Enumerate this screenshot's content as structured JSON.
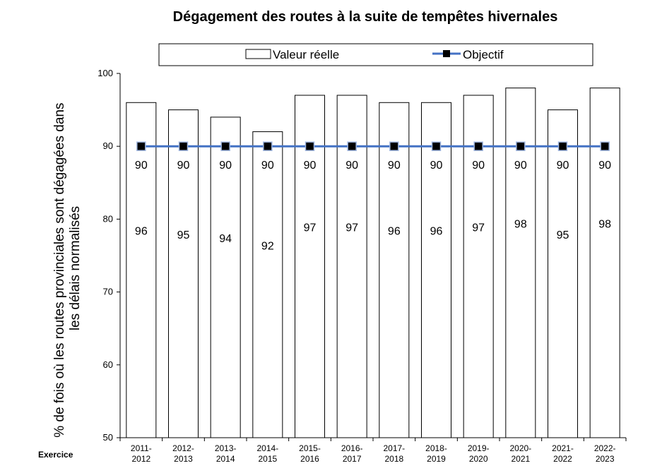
{
  "chart_data": {
    "type": "bar",
    "title": "Dégagement des routes à la suite de tempêtes hivernales",
    "xlabel": "Exercice",
    "ylabel": "% de fois où les routes provinciales sont dégagées dans les délais normalisés",
    "ylim": [
      50,
      100
    ],
    "yticks": [
      "50",
      "60",
      "70",
      "80",
      "90",
      "100"
    ],
    "grid": false,
    "legend_position": "top",
    "categories": [
      [
        "2011-",
        "2012"
      ],
      [
        "2012-",
        "2013"
      ],
      [
        "2013-",
        "2014"
      ],
      [
        "2014-",
        "2015"
      ],
      [
        "2015-",
        "2016"
      ],
      [
        "2016-",
        "2017"
      ],
      [
        "2017-",
        "2018"
      ],
      [
        "2018-",
        "2019"
      ],
      [
        "2019-",
        "2020"
      ],
      [
        "2020-",
        "2021"
      ],
      [
        "2021-",
        "2022"
      ],
      [
        "2022-",
        "2023"
      ]
    ],
    "series": [
      {
        "name": "Valeur réelle",
        "kind": "bar",
        "color": "#ffffff",
        "stroke": "#000000",
        "values": [
          96,
          95,
          94,
          92,
          97,
          97,
          96,
          96,
          97,
          98,
          95,
          98
        ]
      },
      {
        "name": "Objectif",
        "kind": "line",
        "color": "#4472c4",
        "marker": "square",
        "marker_color": "#000000",
        "values": [
          90,
          90,
          90,
          90,
          90,
          90,
          90,
          90,
          90,
          90,
          90,
          90
        ]
      }
    ]
  }
}
